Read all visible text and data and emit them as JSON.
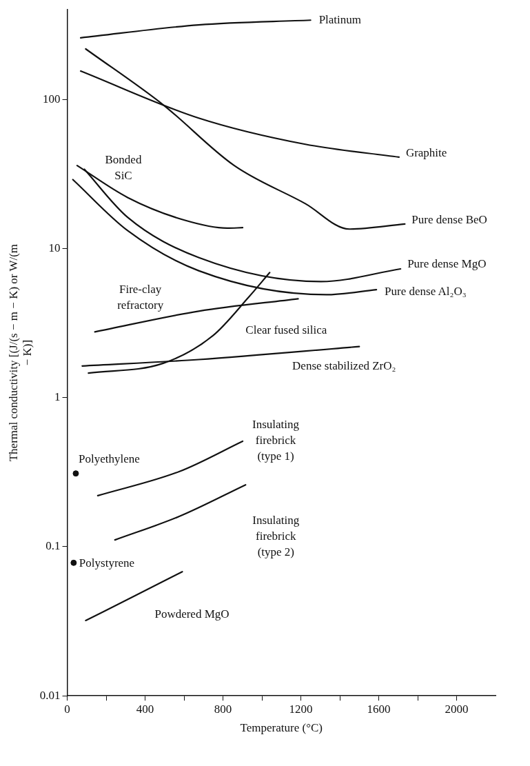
{
  "chart_data": {
    "type": "line",
    "xlabel": "Temperature (°C)",
    "ylabel": "Thermal conductivity [(J/(s − m − K) or W/(m − K)]",
    "log": "y",
    "grid": false,
    "legend": false,
    "xlim": [
      0,
      2200
    ],
    "ylim": [
      0.01,
      400
    ],
    "xticks": [
      0,
      {
        "value": 200,
        "label": null
      },
      400,
      {
        "value": 600,
        "label": null
      },
      800,
      {
        "value": 1000,
        "label": null
      },
      1200,
      {
        "value": 1400,
        "label": null
      },
      1600,
      {
        "value": 1800,
        "label": null
      },
      2000
    ],
    "yticks": [
      0.01,
      0.1,
      1,
      10,
      100
    ],
    "series": [
      {
        "name": "Platinum",
        "color": "#111111",
        "x": [
          69,
          675,
          1250
        ],
        "values": [
          259,
          316,
          340
        ]
      },
      {
        "name": "Graphite",
        "color": "#111111",
        "x": [
          69,
          675,
          1223,
          1704
        ],
        "values": [
          155,
          75,
          50,
          41
        ]
      },
      {
        "name": "Pure dense BeO",
        "color": "#111111",
        "x": [
          95,
          493,
          858,
          1223,
          1449,
          1734
        ],
        "values": [
          218,
          92,
          36,
          20,
          13.5,
          14.6
        ]
      },
      {
        "name": "Bonded SiC",
        "color": "#111111",
        "x": [
          51,
          310,
          602,
          821,
          901
        ],
        "values": [
          36,
          22,
          15.5,
          13.7,
          13.8
        ]
      },
      {
        "name": "Pure dense MgO",
        "color": "#111111",
        "x": [
          88,
          310,
          675,
          1303,
          1712
        ],
        "values": [
          34,
          16.2,
          8.7,
          6,
          7.3
        ]
      },
      {
        "name": "Pure dense Al₂O₃",
        "color": "#111111",
        "x": [
          29,
          310,
          675,
          1332,
          1588
        ],
        "values": [
          29,
          13.2,
          7.1,
          4.9,
          5.3
        ]
      },
      {
        "name": "Fire-clay refractory",
        "color": "#111111",
        "x": [
          142,
          675,
          1186
        ],
        "values": [
          2.76,
          3.8,
          4.6
        ]
      },
      {
        "name": "Clear fused silica",
        "color": "#111111",
        "x": [
          109,
          493,
          748,
          931,
          1040
        ],
        "values": [
          1.46,
          1.7,
          2.6,
          4.7,
          6.9
        ]
      },
      {
        "name": "Dense stabilized ZrO₂",
        "color": "#111111",
        "x": [
          77,
          675,
          1500
        ],
        "values": [
          1.63,
          1.8,
          2.2
        ]
      },
      {
        "name": "Insulating firebrick (type 1)",
        "color": "#111111",
        "x": [
          157,
          577,
          901
        ],
        "values": [
          0.22,
          0.32,
          0.51
        ]
      },
      {
        "name": "Insulating firebrick (type 2)",
        "color": "#111111",
        "x": [
          245,
          577,
          916
        ],
        "values": [
          0.111,
          0.16,
          0.26
        ]
      },
      {
        "name": "Powdered MgO",
        "color": "#111111",
        "x": [
          95,
          350,
          591
        ],
        "values": [
          0.032,
          0.047,
          0.068
        ]
      },
      {
        "name": "Polyethylene",
        "type": "scatter",
        "marker": "circle",
        "color": "#111111",
        "x": [
          44
        ],
        "values": [
          0.31
        ]
      },
      {
        "name": "Polystyrene",
        "type": "scatter",
        "marker": "circle",
        "color": "#111111",
        "x": [
          33
        ],
        "values": [
          0.078
        ]
      }
    ]
  }
}
